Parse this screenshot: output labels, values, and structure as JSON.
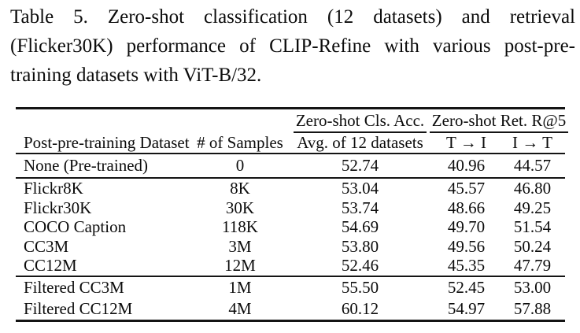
{
  "caption": {
    "line1": "Table 5. Zero-shot classification (12 datasets) and retrieval",
    "line2": "(Flicker30K) performance of CLIP-Refine with various post-pre-",
    "line3": "training datasets with ViT-B/32."
  },
  "table": {
    "group_headers": {
      "cls": "Zero-shot Cls. Acc.",
      "ret": "Zero-shot Ret. R@5"
    },
    "columns": {
      "dataset": "Post-pre-training Dataset",
      "samples": "# of Samples",
      "avg": "Avg. of 12 datasets",
      "t_to_i": "T → I",
      "i_to_t": "I → T"
    },
    "groups": [
      {
        "rows": [
          {
            "dataset": "None (Pre-trained)",
            "samples": "0",
            "avg": "52.74",
            "t_to_i": "40.96",
            "i_to_t": "44.57"
          }
        ]
      },
      {
        "rows": [
          {
            "dataset": "Flickr8K",
            "samples": "8K",
            "avg": "53.04",
            "t_to_i": "45.57",
            "i_to_t": "46.80"
          },
          {
            "dataset": "Flickr30K",
            "samples": "30K",
            "avg": "53.74",
            "t_to_i": "48.66",
            "i_to_t": "49.25"
          },
          {
            "dataset": "COCO Caption",
            "samples": "118K",
            "avg": "54.69",
            "t_to_i": "49.70",
            "i_to_t": "51.54"
          },
          {
            "dataset": "CC3M",
            "samples": "3M",
            "avg": "53.80",
            "t_to_i": "49.56",
            "i_to_t": "50.24"
          },
          {
            "dataset": "CC12M",
            "samples": "12M",
            "avg": "52.46",
            "t_to_i": "45.35",
            "i_to_t": "47.79"
          }
        ]
      },
      {
        "rows": [
          {
            "dataset": "Filtered CC3M",
            "samples": "1M",
            "avg": "55.50",
            "t_to_i": "52.45",
            "i_to_t": "53.00"
          },
          {
            "dataset": "Filtered CC12M",
            "samples": "4M",
            "avg": "60.12",
            "t_to_i": "54.97",
            "i_to_t": "57.88"
          }
        ]
      }
    ]
  },
  "colors": {
    "text": "#0c0c0c",
    "rule": "#141414",
    "background": "#ffffff"
  }
}
